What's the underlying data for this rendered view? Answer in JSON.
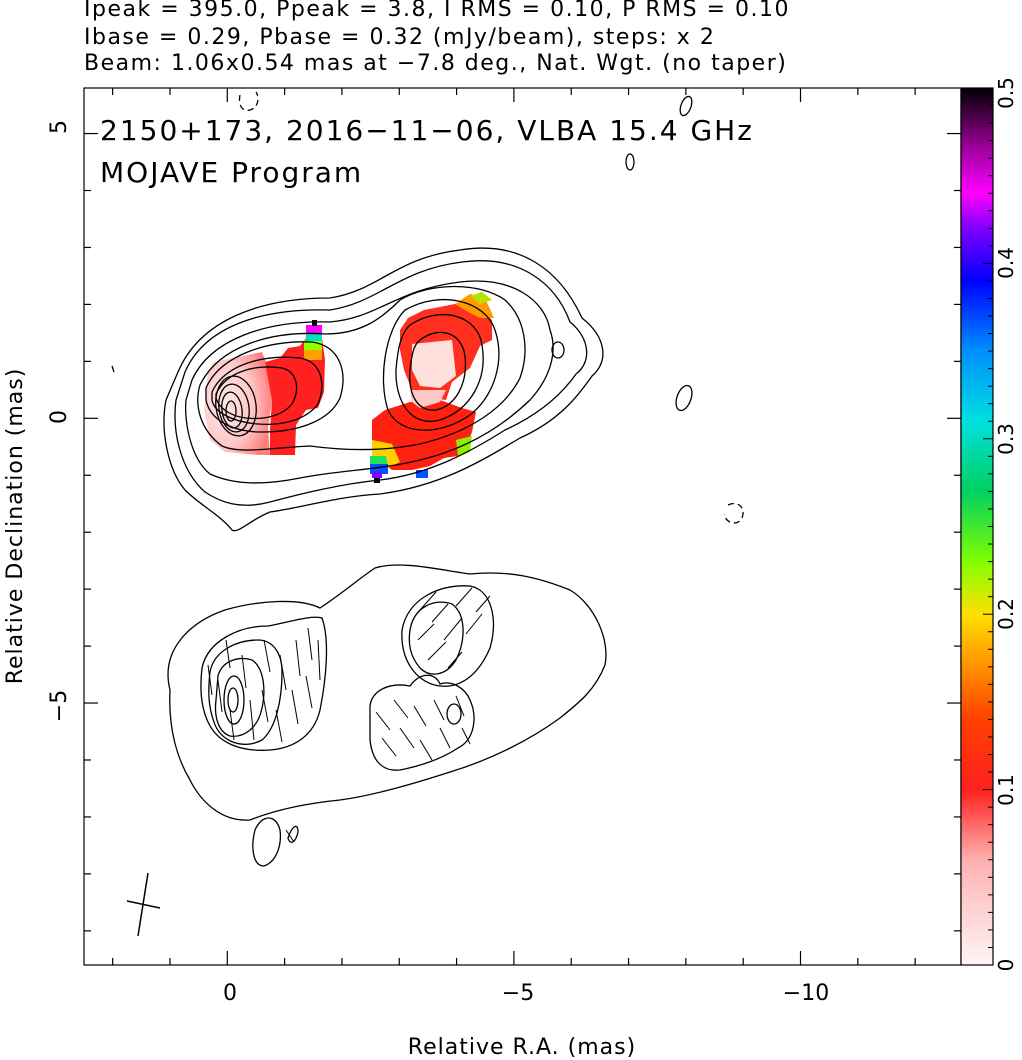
{
  "header": {
    "line1": "Ipeak = 395.0, Ppeak = 3.8, I RMS = 0.10, P RMS = 0.10",
    "line2": "Ibase = 0.29, Pbase = 0.32 (mJy/beam), steps: x 2",
    "line3": "Beam: 1.06x0.54 mas at −7.8 deg., Nat. Wgt. (no taper)"
  },
  "chart_data": {
    "type": "contour",
    "title": "2150+173, 2016−11−06, VLBA 15.4 GHz",
    "subtitle": "MOJAVE Program",
    "xlabel": "Relative R.A. (mas)",
    "ylabel": "Relative Declination (mas)",
    "xlim": [
      2.5,
      -12.8
    ],
    "ylim": [
      -9.6,
      5.8
    ],
    "x_ticks": [
      0,
      -5,
      -10
    ],
    "x_tick_labels": [
      "0",
      "−5",
      "−10"
    ],
    "y_ticks": [
      5,
      0,
      -5
    ],
    "y_tick_labels": [
      "5",
      "0",
      "−5"
    ],
    "colorbar": {
      "range": [
        0,
        0.5
      ],
      "ticks": [
        0,
        0.1,
        0.2,
        0.3,
        0.4,
        0.5
      ],
      "tick_labels": [
        "0",
        "0.1",
        "0.2",
        "0.3",
        "0.4",
        "0.5"
      ]
    },
    "total_intensity_panel": {
      "core": {
        "x": 0,
        "y": 0
      },
      "contour_levels_mJy_per_beam": [
        0.29,
        0.58,
        1.16,
        2.32,
        4.64,
        9.28,
        18.56,
        37.12,
        74.24,
        148.48,
        296.96
      ],
      "component_b": {
        "x": -3.5,
        "y": 0.9
      }
    },
    "polarized_intensity_panel": {
      "offset_dec": -5,
      "peaks": [
        {
          "x": -0.1,
          "y": -4.9
        },
        {
          "x": -3.9,
          "y": -5.0
        }
      ]
    },
    "fractional_polarization_patches": [
      {
        "x_range": [
          0,
          -1.6
        ],
        "y_range": [
          1.2,
          -0.7
        ],
        "value_range": [
          0.05,
          0.45
        ]
      },
      {
        "x_range": [
          -2.5,
          -4.5
        ],
        "y_range": [
          2.0,
          -1.1
        ],
        "value_range": [
          0.08,
          0.5
        ]
      }
    ]
  }
}
